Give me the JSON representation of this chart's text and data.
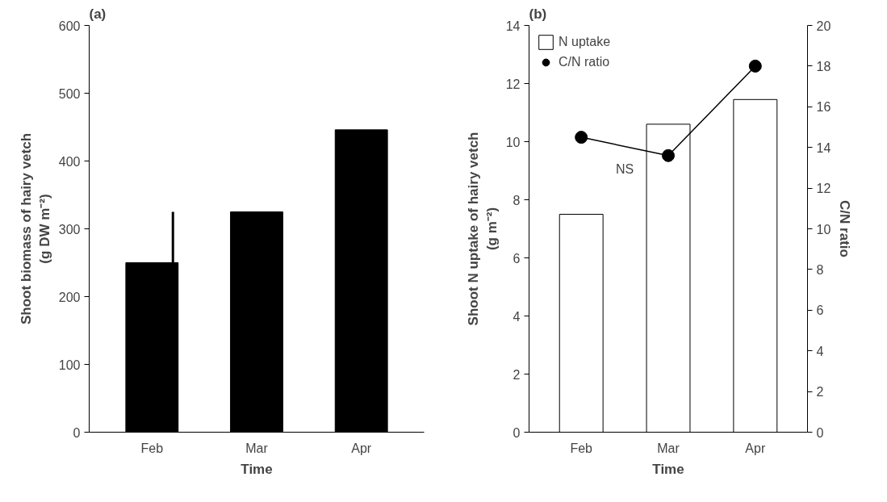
{
  "chart_data": [
    {
      "type": "bar",
      "title": "(a)",
      "xlabel": "Time",
      "ylabel": "Shoot biomass of hairy vetch\n(g DW m⁻²)",
      "categories": [
        "Feb",
        "Mar",
        "Apr"
      ],
      "ylim": [
        0,
        600
      ],
      "yticks": [
        0,
        100,
        200,
        300,
        400,
        500,
        600
      ],
      "grid": false,
      "legend": false,
      "series": [
        {
          "color": "#000000",
          "values": [
            250,
            325,
            446
          ],
          "errors": [
            [
              250,
              325
            ],
            null,
            null
          ]
        }
      ]
    },
    {
      "type": "bar",
      "title": "(b)",
      "xlabel": "Time",
      "ylabel": "Shoot N uptake of hairy vetch\n(g m⁻²)",
      "y2label": "C/N ratio",
      "categories": [
        "Feb",
        "Mar",
        "Apr"
      ],
      "ylim": [
        0,
        14
      ],
      "yticks": [
        0,
        2,
        4,
        6,
        8,
        10,
        12,
        14
      ],
      "y2lim": [
        0,
        20
      ],
      "y2ticks": [
        0,
        2,
        4,
        6,
        8,
        10,
        12,
        14,
        16,
        18,
        20
      ],
      "grid": false,
      "legend": "top left",
      "annotations": [
        "NS"
      ],
      "series": [
        {
          "name": "N uptake",
          "color": "#ffffff",
          "values": [
            7.5,
            10.6,
            11.45
          ]
        },
        {
          "name": "C/N ratio",
          "type": "line",
          "marker": "circle",
          "axis": "y2",
          "color": "#000000",
          "values": [
            14.5,
            13.6,
            18.0
          ]
        }
      ]
    }
  ]
}
